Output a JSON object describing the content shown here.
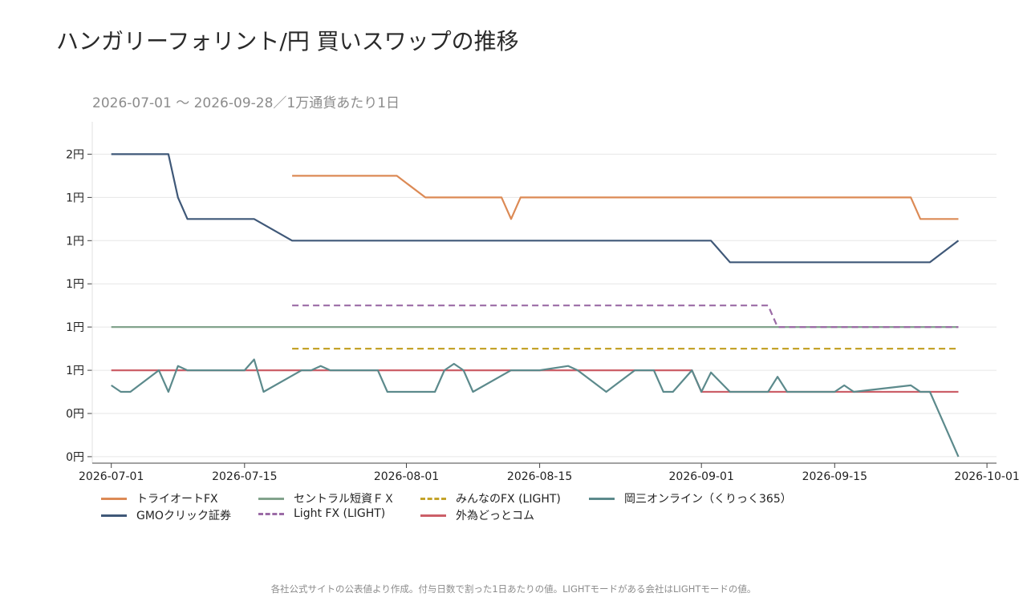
{
  "header": {
    "title": "ハンガリーフォリント/円 買いスワップの推移",
    "subtitle": "2026-07-01 〜 2026-09-28／1万通貨あたり1日"
  },
  "footer": {
    "note": "各社公式サイトの公表値より作成。付与日数で割った1日あたりの値。LIGHTモードがある会社はLIGHTモードの値。"
  },
  "chart_data": {
    "type": "line",
    "title": "ハンガリーフォリント/円 買いスワップの推移",
    "subtitle": "2026-07-01 〜 2026-09-28／1万通貨あたり1日",
    "xlabel": "",
    "ylabel": "",
    "x_type": "date",
    "xlim": [
      "2026-06-29",
      "2026-10-02"
    ],
    "ylim": [
      0.07,
      1.65
    ],
    "x_ticks": [
      "2026-07-01",
      "2026-07-15",
      "2026-08-01",
      "2026-08-15",
      "2026-09-01",
      "2026-09-15",
      "2026-10-01"
    ],
    "y_ticks": [
      0.1,
      0.3,
      0.5,
      0.7,
      0.9,
      1.1,
      1.3,
      1.5
    ],
    "y_tick_labels": [
      "0円",
      "0円",
      "1円",
      "1円",
      "1円",
      "1円",
      "1円",
      "2円"
    ],
    "grid": "horizontal",
    "legend_position": "bottom",
    "series": [
      {
        "name": "トライオートFX",
        "color": "#dc8a55",
        "dash": "solid",
        "points": [
          [
            "2026-07-20",
            1.4
          ],
          [
            "2026-07-31",
            1.4
          ],
          [
            "2026-08-03",
            1.3
          ],
          [
            "2026-08-11",
            1.3
          ],
          [
            "2026-08-12",
            1.2
          ],
          [
            "2026-08-13",
            1.3
          ],
          [
            "2026-09-23",
            1.3
          ],
          [
            "2026-09-24",
            1.2
          ],
          [
            "2026-09-28",
            1.2
          ]
        ]
      },
      {
        "name": "GMOクリック証券",
        "color": "#3f5878",
        "dash": "solid",
        "points": [
          [
            "2026-07-01",
            1.5
          ],
          [
            "2026-07-07",
            1.5
          ],
          [
            "2026-07-08",
            1.3
          ],
          [
            "2026-07-09",
            1.2
          ],
          [
            "2026-07-16",
            1.2
          ],
          [
            "2026-07-20",
            1.1
          ],
          [
            "2026-09-02",
            1.1
          ],
          [
            "2026-09-04",
            1.0
          ],
          [
            "2026-09-25",
            1.0
          ],
          [
            "2026-09-28",
            1.1
          ]
        ]
      },
      {
        "name": "セントラル短資ＦＸ",
        "color": "#82a38c",
        "dash": "solid",
        "points": [
          [
            "2026-07-01",
            0.7
          ],
          [
            "2026-09-28",
            0.7
          ]
        ]
      },
      {
        "name": "Light FX (LIGHT)",
        "color": "#9b6ba6",
        "dash": "dashed",
        "points": [
          [
            "2026-07-20",
            0.8
          ],
          [
            "2026-09-08",
            0.8
          ],
          [
            "2026-09-09",
            0.7
          ],
          [
            "2026-09-28",
            0.7
          ]
        ]
      },
      {
        "name": "みんなのFX (LIGHT)",
        "color": "#c4a32a",
        "dash": "dashed",
        "points": [
          [
            "2026-07-20",
            0.6
          ],
          [
            "2026-09-28",
            0.6
          ]
        ]
      },
      {
        "name": "外為どっとコム",
        "color": "#cc5f68",
        "dash": "solid",
        "points": [
          [
            "2026-07-01",
            0.5
          ],
          [
            "2026-08-31",
            0.5
          ],
          [
            "2026-09-01",
            0.4
          ],
          [
            "2026-09-28",
            0.4
          ]
        ]
      },
      {
        "name": "岡三オンライン（くりっく365）",
        "color": "#5c8a8c",
        "dash": "solid",
        "points": [
          [
            "2026-07-01",
            0.43
          ],
          [
            "2026-07-02",
            0.4
          ],
          [
            "2026-07-03",
            0.4
          ],
          [
            "2026-07-06",
            0.5
          ],
          [
            "2026-07-07",
            0.4
          ],
          [
            "2026-07-08",
            0.52
          ],
          [
            "2026-07-09",
            0.5
          ],
          [
            "2026-07-14",
            0.5
          ],
          [
            "2026-07-15",
            0.5
          ],
          [
            "2026-07-16",
            0.55
          ],
          [
            "2026-07-17",
            0.4
          ],
          [
            "2026-07-21",
            0.5
          ],
          [
            "2026-07-22",
            0.5
          ],
          [
            "2026-07-23",
            0.52
          ],
          [
            "2026-07-24",
            0.5
          ],
          [
            "2026-07-29",
            0.5
          ],
          [
            "2026-07-30",
            0.4
          ],
          [
            "2026-08-04",
            0.4
          ],
          [
            "2026-08-05",
            0.5
          ],
          [
            "2026-08-06",
            0.53
          ],
          [
            "2026-08-07",
            0.5
          ],
          [
            "2026-08-08",
            0.4
          ],
          [
            "2026-08-12",
            0.5
          ],
          [
            "2026-08-15",
            0.5
          ],
          [
            "2026-08-18",
            0.52
          ],
          [
            "2026-08-19",
            0.5
          ],
          [
            "2026-08-22",
            0.4
          ],
          [
            "2026-08-25",
            0.5
          ],
          [
            "2026-08-27",
            0.5
          ],
          [
            "2026-08-28",
            0.4
          ],
          [
            "2026-08-29",
            0.4
          ],
          [
            "2026-08-31",
            0.5
          ],
          [
            "2026-09-01",
            0.4
          ],
          [
            "2026-09-02",
            0.49
          ],
          [
            "2026-09-04",
            0.4
          ],
          [
            "2026-09-08",
            0.4
          ],
          [
            "2026-09-09",
            0.47
          ],
          [
            "2026-09-10",
            0.4
          ],
          [
            "2026-09-15",
            0.4
          ],
          [
            "2026-09-16",
            0.43
          ],
          [
            "2026-09-17",
            0.4
          ],
          [
            "2026-09-23",
            0.43
          ],
          [
            "2026-09-24",
            0.4
          ],
          [
            "2026-09-25",
            0.4
          ],
          [
            "2026-09-28",
            0.1
          ]
        ]
      }
    ]
  }
}
